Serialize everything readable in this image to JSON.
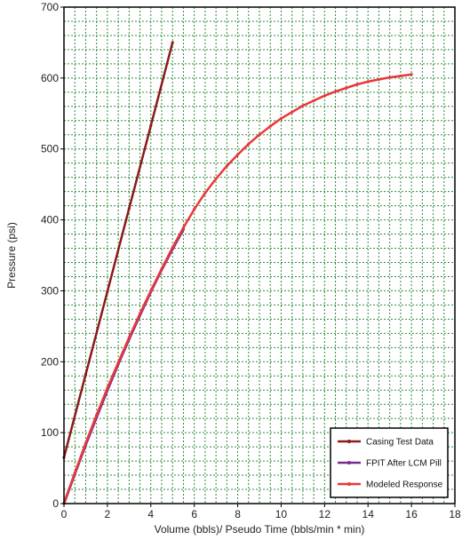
{
  "chart_data": {
    "type": "line",
    "title": "",
    "xlabel": "Volume (bbls)/ Pseudo Time (bbls/min * min)",
    "ylabel": "Pressure (psi)",
    "xlim": [
      0,
      18
    ],
    "ylim": [
      0,
      700
    ],
    "x_ticks": [
      "0",
      "2",
      "4",
      "6",
      "8",
      "10",
      "12",
      "14",
      "16",
      "18"
    ],
    "y_ticks": [
      "0",
      "100",
      "200",
      "300",
      "400",
      "500",
      "600",
      "700"
    ],
    "grid": true,
    "grid_color": "#2e8b3a",
    "legend_position": "bottom-right",
    "series": [
      {
        "name": "Casing Test Data",
        "color": "#8b1a1a",
        "x": [
          0,
          1,
          2,
          3,
          4,
          5
        ],
        "y": [
          65,
          182,
          299,
          416,
          533,
          650
        ]
      },
      {
        "name": "FPIT After LCM Pill",
        "color": "#7b2d8f",
        "x": [
          0,
          0.5,
          1,
          1.5,
          2,
          2.5,
          3,
          3.5,
          4,
          4.5,
          5,
          5.5
        ],
        "y": [
          0,
          42,
          83,
          122,
          160,
          197,
          232,
          266,
          299,
          330,
          359,
          387
        ]
      },
      {
        "name": "Modeled Response",
        "color": "#e8383b",
        "x": [
          0,
          0.5,
          1,
          1.5,
          2,
          2.5,
          3,
          3.5,
          4,
          4.5,
          5,
          5.5,
          6,
          6.5,
          7,
          7.5,
          8,
          8.5,
          9,
          9.5,
          10,
          10.5,
          11,
          11.5,
          12,
          12.5,
          13,
          13.5,
          14,
          14.5,
          15,
          15.5,
          16
        ],
        "y": [
          0,
          43,
          85,
          125,
          163,
          199,
          234,
          268,
          300,
          331,
          361,
          389,
          415,
          438,
          458,
          476,
          492,
          507,
          520,
          532,
          543,
          552,
          561,
          568,
          575,
          581,
          586,
          591,
          595,
          598,
          601,
          603,
          605
        ]
      }
    ]
  }
}
